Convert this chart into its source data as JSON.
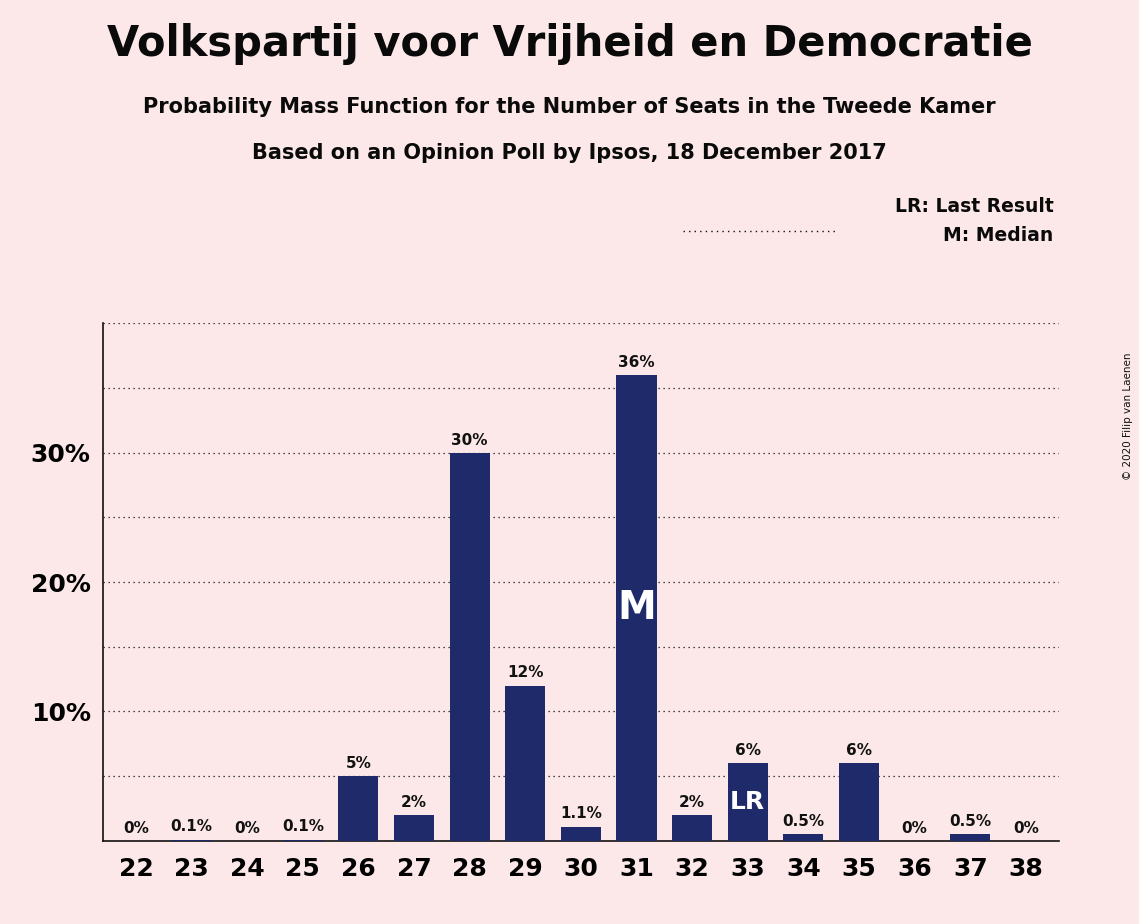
{
  "title": "Volkspartij voor Vrijheid en Democratie",
  "subtitle1": "Probability Mass Function for the Number of Seats in the Tweede Kamer",
  "subtitle2": "Based on an Opinion Poll by Ipsos, 18 December 2017",
  "copyright": "© 2020 Filip van Laenen",
  "seats": [
    22,
    23,
    24,
    25,
    26,
    27,
    28,
    29,
    30,
    31,
    32,
    33,
    34,
    35,
    36,
    37,
    38
  ],
  "values": [
    0.0,
    0.1,
    0.0,
    0.1,
    5.0,
    2.0,
    30.0,
    12.0,
    1.1,
    36.0,
    2.0,
    6.0,
    0.5,
    6.0,
    0.0,
    0.5,
    0.0
  ],
  "labels": [
    "0%",
    "0.1%",
    "0%",
    "0.1%",
    "5%",
    "2%",
    "30%",
    "12%",
    "1.1%",
    "36%",
    "2%",
    "6%",
    "0.5%",
    "6%",
    "0%",
    "0.5%",
    "0%"
  ],
  "bar_color": "#1f2a6b",
  "background_color": "#fce8e8",
  "median_seat": 31,
  "lr_seat": 33,
  "yticks": [
    0,
    5,
    10,
    15,
    20,
    25,
    30,
    35,
    40
  ],
  "ytick_labels": [
    "",
    "",
    "10%",
    "",
    "20%",
    "",
    "30%",
    "",
    ""
  ],
  "ylim": [
    0,
    40
  ],
  "legend_lr": "LR: Last Result",
  "legend_m": "M: Median",
  "grid_color": "#111111",
  "label_fontsize": 11,
  "title_fontsize": 30,
  "subtitle_fontsize": 15,
  "axis_fontsize": 18
}
